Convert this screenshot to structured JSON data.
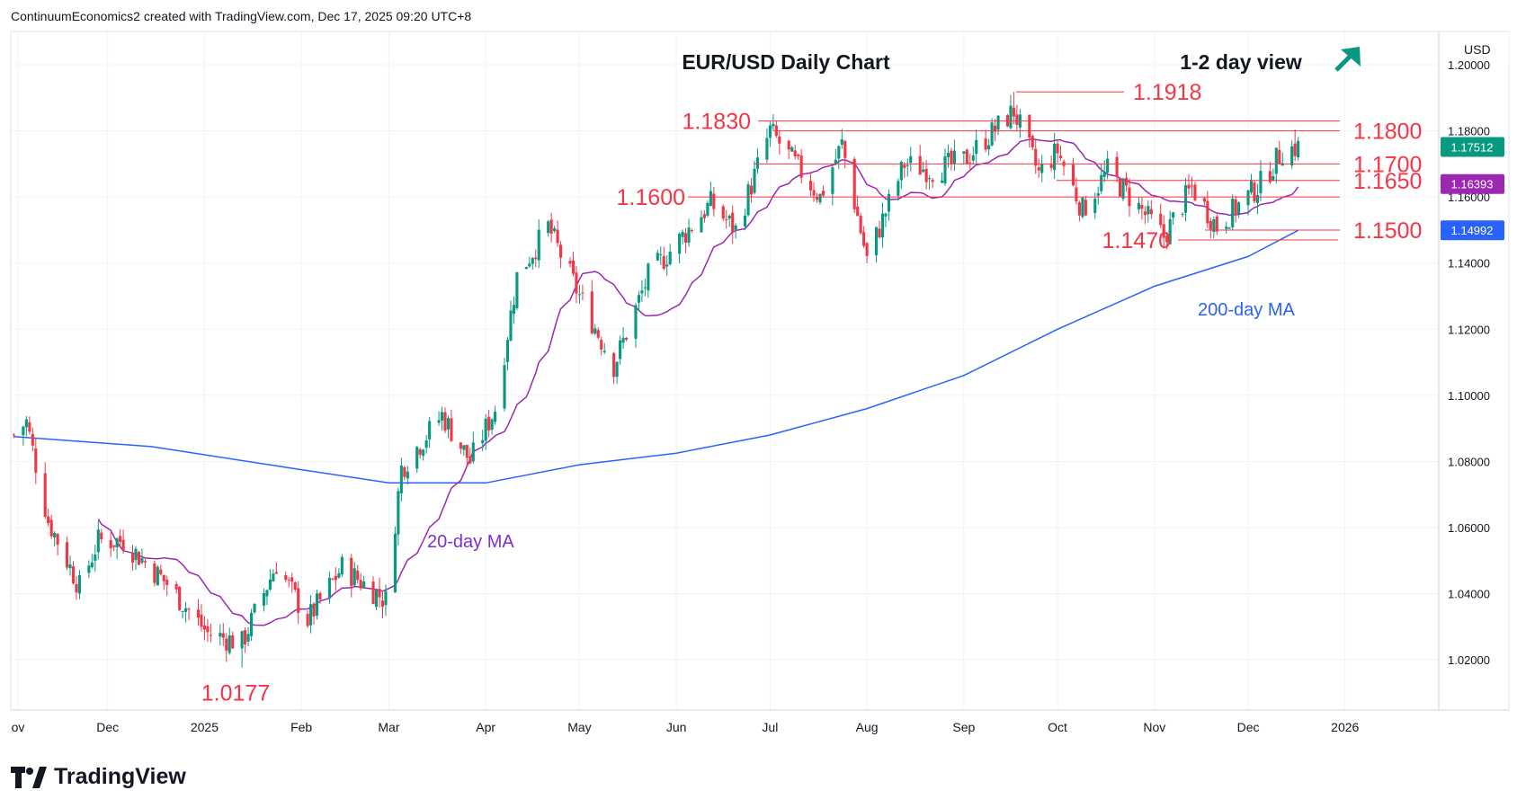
{
  "header": {
    "attribution": "ContinuumEconomics2 created with TradingView.com, Dec 17, 2025 09:20 UTC+8"
  },
  "brand": {
    "name": "TradingView"
  },
  "colors": {
    "up": "#089981",
    "down": "#f23645",
    "level": "#f23645",
    "ma20": "#9c27b0",
    "ma200": "#2962ff",
    "price_tag": "#089981",
    "ma20_tag": "#9c27b0",
    "ma200_tag": "#2962ff",
    "grid": "#f0f3fa"
  },
  "chart_data": {
    "type": "candlestick",
    "title": "EUR/USD Daily Chart",
    "view_label": "1-2 day view",
    "view_icon": "up-right-arrow-icon",
    "currency": "USD",
    "y_ticks": [
      "1.02000",
      "1.04000",
      "1.06000",
      "1.08000",
      "1.10000",
      "1.12000",
      "1.14000",
      "1.16000",
      "1.18000",
      "1.20000"
    ],
    "x_ticks": [
      "ov",
      "Dec",
      "2025",
      "Feb",
      "Mar",
      "Apr",
      "May",
      "Jun",
      "Jul",
      "Aug",
      "Sep",
      "Oct",
      "Nov",
      "Dec",
      "2026"
    ],
    "levels": [
      {
        "label": "1.1918",
        "value": 1.1918
      },
      {
        "label": "1.1830",
        "value": 1.183
      },
      {
        "label": "1.1800",
        "value": 1.18
      },
      {
        "label": "1.1700",
        "value": 1.17
      },
      {
        "label": "1.1650",
        "value": 1.165
      },
      {
        "label": "1.1600",
        "value": 1.16
      },
      {
        "label": "1.1500",
        "value": 1.15
      },
      {
        "label": "1.1470",
        "value": 1.147
      },
      {
        "label": "1.0177",
        "value": 1.0177
      }
    ],
    "annotations": [
      "20-day MA",
      "200-day MA"
    ],
    "price_tags": [
      {
        "label": "1.17512",
        "value": 1.17512,
        "kind": "price"
      },
      {
        "label": "1.16393",
        "value": 1.16393,
        "kind": "ma20"
      },
      {
        "label": "1.14992",
        "value": 1.14992,
        "kind": "ma200"
      }
    ],
    "close_anchors": [
      {
        "date": "Nov 1 2024",
        "close": 1.088
      },
      {
        "date": "Nov 5 2024",
        "close": 1.092
      },
      {
        "date": "Nov 12 2024",
        "close": 1.062
      },
      {
        "date": "Nov 22 2024",
        "close": 1.042
      },
      {
        "date": "Nov 28 2024",
        "close": 1.056
      },
      {
        "date": "Dec 6 2024",
        "close": 1.056
      },
      {
        "date": "Dec 20 2024",
        "close": 1.043
      },
      {
        "date": "Jan 2 2025",
        "close": 1.028
      },
      {
        "date": "Jan 13 2025",
        "close": 1.025
      },
      {
        "date": "Jan 24 2025",
        "close": 1.049
      },
      {
        "date": "Feb 3 2025",
        "close": 1.032
      },
      {
        "date": "Feb 14 2025",
        "close": 1.048
      },
      {
        "date": "Feb 28 2025",
        "close": 1.038
      },
      {
        "date": "Mar 5 2025",
        "close": 1.078
      },
      {
        "date": "Mar 18 2025",
        "close": 1.094
      },
      {
        "date": "Mar 27 2025",
        "close": 1.08
      },
      {
        "date": "Apr 4 2025",
        "close": 1.096
      },
      {
        "date": "Apr 11 2025",
        "close": 1.136
      },
      {
        "date": "Apr 21 2025",
        "close": 1.151
      },
      {
        "date": "Apr 30 2025",
        "close": 1.132
      },
      {
        "date": "May 12 2025",
        "close": 1.109
      },
      {
        "date": "May 23 2025",
        "close": 1.136
      },
      {
        "date": "Jun 12 2025",
        "close": 1.158
      },
      {
        "date": "Jun 20 2025",
        "close": 1.15
      },
      {
        "date": "Jul 1 2025",
        "close": 1.18
      },
      {
        "date": "Jul 17 2025",
        "close": 1.16
      },
      {
        "date": "Jul 24 2025",
        "close": 1.176
      },
      {
        "date": "Aug 1 2025",
        "close": 1.141
      },
      {
        "date": "Aug 13 2025",
        "close": 1.17
      },
      {
        "date": "Aug 22 2025",
        "close": 1.168
      },
      {
        "date": "Sep 1 2025",
        "close": 1.171
      },
      {
        "date": "Sep 17 2025",
        "close": 1.186
      },
      {
        "date": "Sep 25 2025",
        "close": 1.167
      },
      {
        "date": "Oct 1 2025",
        "close": 1.174
      },
      {
        "date": "Oct 9 2025",
        "close": 1.156
      },
      {
        "date": "Oct 17 2025",
        "close": 1.168
      },
      {
        "date": "Nov 4 2025",
        "close": 1.148
      },
      {
        "date": "Nov 13 2025",
        "close": 1.163
      },
      {
        "date": "Nov 21 2025",
        "close": 1.151
      },
      {
        "date": "Dec 5 2025",
        "close": 1.164
      },
      {
        "date": "Dec 12 2025",
        "close": 1.174
      },
      {
        "date": "Dec 17 2025",
        "close": 1.1751
      }
    ],
    "ma200_anchors": [
      {
        "date": "Nov 1 2024",
        "value": 1.0875
      },
      {
        "date": "Dec 15 2024",
        "value": 1.0845
      },
      {
        "date": "Feb 1 2025",
        "value": 1.0775
      },
      {
        "date": "Mar 1 2025",
        "value": 1.0735
      },
      {
        "date": "Apr 1 2025",
        "value": 1.0735
      },
      {
        "date": "May 1 2025",
        "value": 1.079
      },
      {
        "date": "Jun 1 2025",
        "value": 1.0825
      },
      {
        "date": "Jul 1 2025",
        "value": 1.088
      },
      {
        "date": "Aug 1 2025",
        "value": 1.096
      },
      {
        "date": "Sep 1 2025",
        "value": 1.106
      },
      {
        "date": "Oct 1 2025",
        "value": 1.12
      },
      {
        "date": "Nov 1 2025",
        "value": 1.133
      },
      {
        "date": "Dec 1 2025",
        "value": 1.142
      },
      {
        "date": "Dec 17 2025",
        "value": 1.1499
      }
    ],
    "ylim": [
      1.0048,
      1.2098
    ]
  }
}
